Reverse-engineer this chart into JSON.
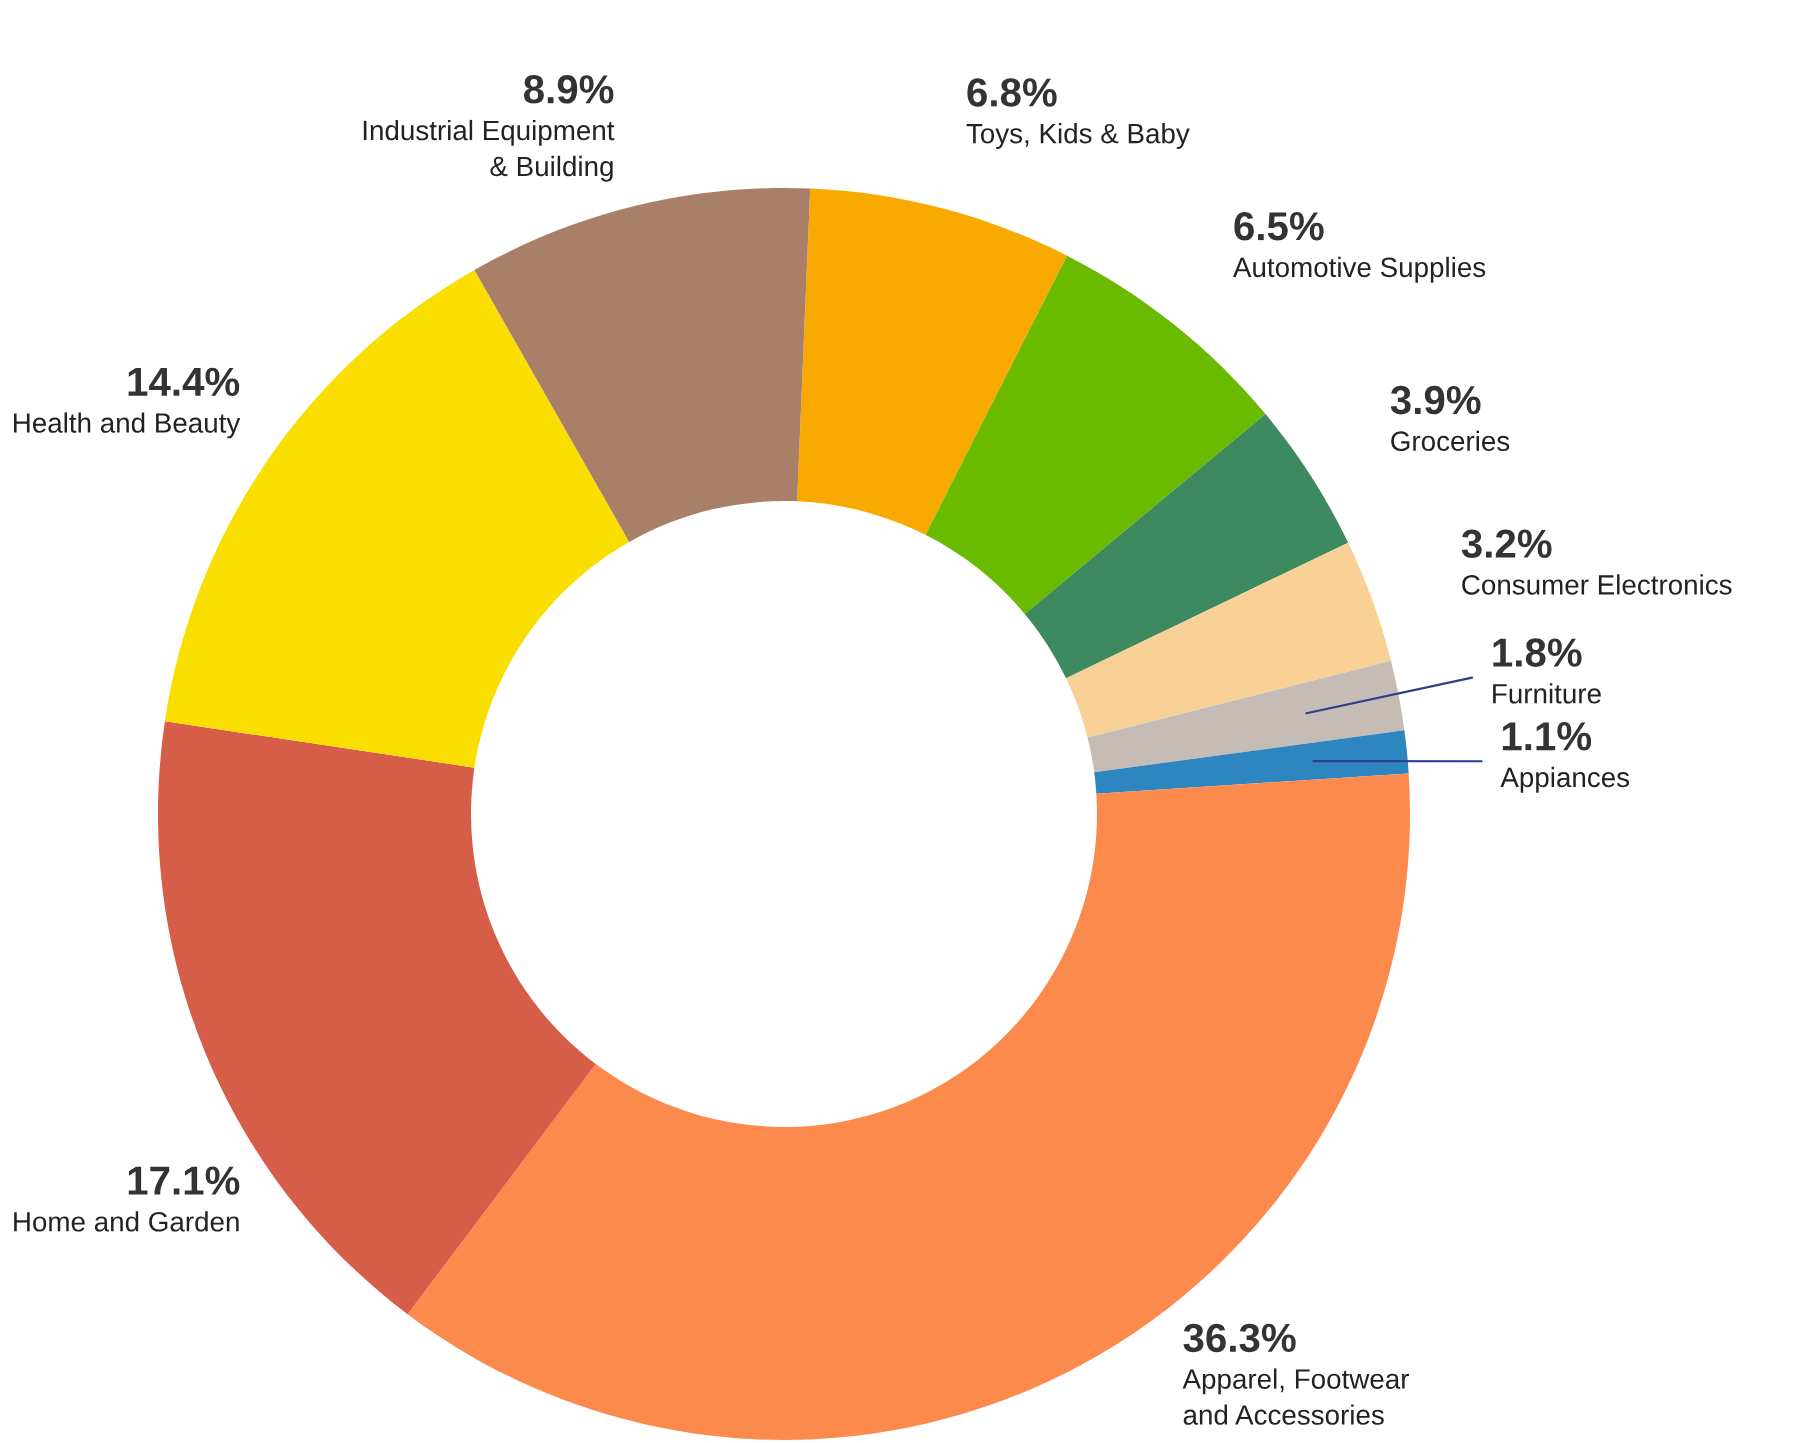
{
  "chart_data": {
    "type": "donut",
    "categories": [
      "Toys, Kids & Baby",
      "Automotive Supplies",
      "Groceries",
      "Consumer Electronics",
      "Furniture",
      "Appiances",
      "Apparel, Footwear\nand Accessories",
      "Home and Garden",
      "Health and Beauty",
      "Industrial Equipment\n& Building"
    ],
    "values": [
      6.8,
      6.5,
      3.9,
      3.2,
      1.8,
      1.1,
      36.3,
      17.1,
      14.4,
      8.9
    ],
    "value_labels": [
      "6.8%",
      "6.5%",
      "3.9%",
      "3.2%",
      "1.8%",
      "1.1%",
      "36.3%",
      "17.1%",
      "14.4%",
      "8.9%"
    ],
    "colors": [
      "#f9aa00",
      "#6aba00",
      "#3d8960",
      "#f9d196",
      "#c5bcb5",
      "#2e86c1",
      "#fb8a4c",
      "#d65d47",
      "#f9de00",
      "#a97f67"
    ]
  }
}
